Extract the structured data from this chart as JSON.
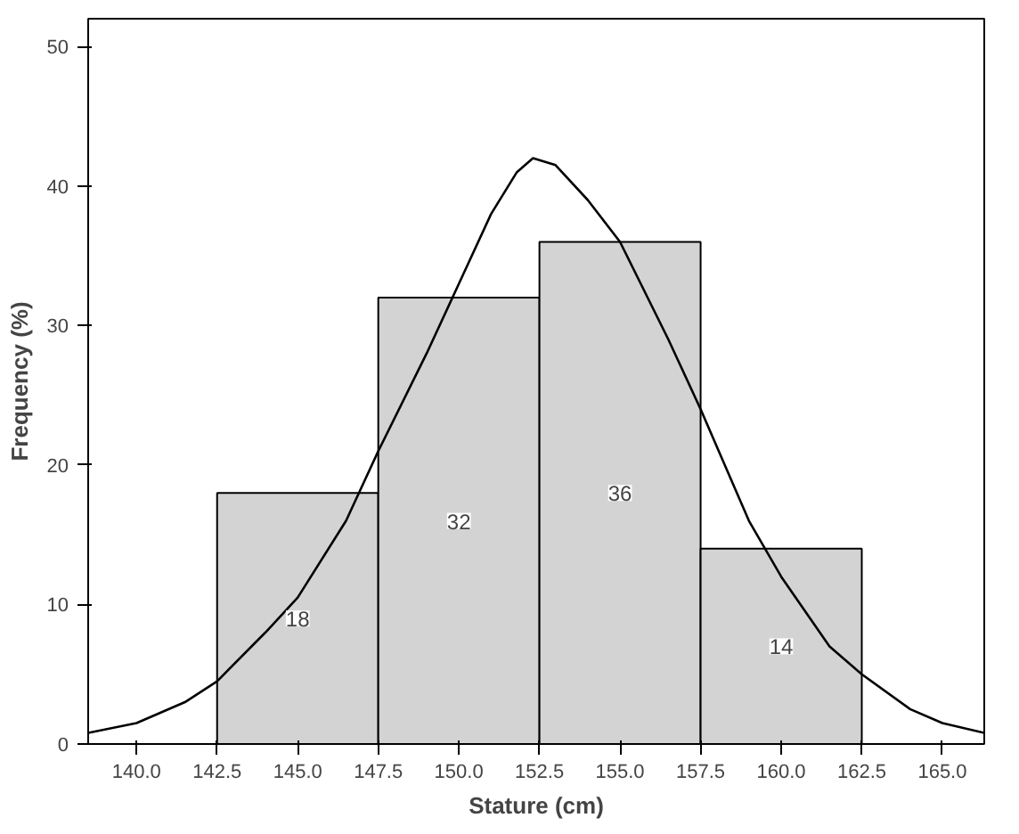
{
  "chart_data": {
    "type": "histogram",
    "xlabel": "Stature (cm)",
    "ylabel": "Frequency (%)",
    "bins": [
      142.5,
      147.5,
      152.5,
      157.5,
      162.5
    ],
    "values": [
      18,
      32,
      36,
      14
    ],
    "color": "#d3d3d3",
    "value_labels": [
      "18",
      "32",
      "36",
      "14"
    ],
    "series": [
      {
        "type": "line",
        "color": "#000000",
        "x": [
          138.5,
          140,
          141.5,
          142.5,
          144,
          145,
          146.5,
          147.5,
          149,
          150,
          151,
          151.8,
          152.3,
          153,
          154,
          155,
          156.5,
          157.5,
          159,
          160,
          161.5,
          162.5,
          164,
          165,
          166.3
        ],
        "values": [
          0.8,
          1.5,
          3,
          4.5,
          8,
          10.5,
          16,
          21,
          28,
          33,
          38,
          41,
          42,
          41.5,
          39,
          36,
          29,
          24,
          16,
          12,
          7,
          5,
          2.5,
          1.5,
          0.8
        ]
      }
    ],
    "xlim": [
      138.5,
      166.3
    ],
    "ylim": [
      0,
      52
    ],
    "xticks": [
      {
        "value": 140,
        "label": "140.0"
      },
      {
        "value": 142.5,
        "label": "142.5"
      },
      {
        "value": 145,
        "label": "145.0"
      },
      {
        "value": 147.5,
        "label": "147.5"
      },
      {
        "value": 150,
        "label": "150.0"
      },
      {
        "value": 152.5,
        "label": "152.5"
      },
      {
        "value": 155,
        "label": "155.0"
      },
      {
        "value": 157.5,
        "label": "157.5"
      },
      {
        "value": 160,
        "label": "160.0"
      },
      {
        "value": 162.5,
        "label": "162.5"
      },
      {
        "value": 165,
        "label": "165.0"
      }
    ],
    "yticks": [
      0,
      10,
      20,
      30,
      40,
      50
    ],
    "grid": false
  }
}
